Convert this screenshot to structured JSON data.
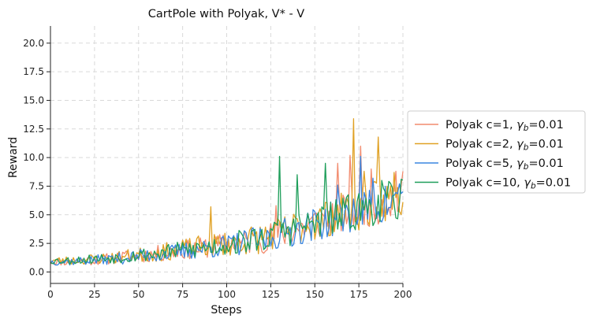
{
  "chart_data": {
    "type": "line",
    "title": "CartPole with Polyak, V* - V",
    "xlabel": "Steps",
    "ylabel": "Reward",
    "xlim": [
      0,
      200
    ],
    "ylim": [
      -1.0,
      21.5
    ],
    "xticks": [
      0,
      25,
      50,
      75,
      100,
      125,
      150,
      175,
      200
    ],
    "yticks": [
      0.0,
      2.5,
      5.0,
      7.5,
      10.0,
      12.5,
      15.0,
      17.5,
      20.0
    ],
    "xtick_labels": [
      "0",
      "25",
      "50",
      "75",
      "100",
      "125",
      "150",
      "175",
      "200"
    ],
    "ytick_labels": [
      "0.0",
      "2.5",
      "5.0",
      "7.5",
      "10.0",
      "12.5",
      "15.0",
      "17.5",
      "20.0"
    ],
    "grid": true,
    "legend_placement": "right-outside",
    "series": [
      {
        "name": "Polyak c=1, γb=0.01",
        "label_main": "Polyak c=1, ",
        "label_tail": "=0.01",
        "color": "#F28B6E",
        "x": [
          0,
          10,
          20,
          30,
          40,
          50,
          60,
          70,
          80,
          90,
          100,
          110,
          120,
          125,
          130,
          135,
          140,
          145,
          150,
          155,
          160,
          165,
          170,
          175,
          180,
          185,
          190,
          195,
          200
        ],
        "y": [
          0.9,
          0.9,
          1.0,
          1.1,
          1.3,
          1.4,
          1.6,
          1.8,
          2.0,
          2.2,
          2.4,
          2.6,
          2.9,
          3.1,
          3.3,
          3.6,
          3.8,
          4.0,
          4.3,
          4.5,
          4.8,
          5.0,
          5.3,
          5.5,
          5.8,
          6.0,
          6.2,
          6.5,
          6.8
        ],
        "noise": 1.2,
        "seed": 11,
        "peaks": [
          [
            128,
            5.8
          ],
          [
            163,
            9.5
          ],
          [
            170,
            10.2
          ],
          [
            176,
            11.0
          ],
          [
            182,
            9.0
          ],
          [
            196,
            8.8
          ]
        ]
      },
      {
        "name": "Polyak c=2, γb=0.01",
        "label_main": "Polyak c=2, ",
        "label_tail": "=0.01",
        "color": "#E0A124",
        "x": [
          0,
          10,
          20,
          30,
          40,
          50,
          60,
          70,
          80,
          90,
          100,
          110,
          120,
          125,
          130,
          135,
          140,
          145,
          150,
          155,
          160,
          165,
          170,
          175,
          180,
          185,
          190,
          195,
          200
        ],
        "y": [
          1.0,
          1.0,
          1.1,
          1.2,
          1.3,
          1.5,
          1.6,
          1.9,
          2.1,
          2.3,
          2.5,
          2.7,
          3.0,
          3.2,
          3.4,
          3.7,
          3.9,
          4.1,
          4.4,
          4.6,
          4.9,
          5.1,
          5.3,
          5.5,
          5.8,
          6.0,
          6.2,
          6.4,
          6.6
        ],
        "noise": 1.25,
        "seed": 23,
        "peaks": [
          [
            91,
            5.7
          ],
          [
            172,
            13.4
          ],
          [
            178,
            8.8
          ],
          [
            186,
            11.8
          ],
          [
            195,
            8.7
          ]
        ]
      },
      {
        "name": "Polyak c=5, γb=0.01",
        "label_main": "Polyak c=5, ",
        "label_tail": "=0.01",
        "color": "#3A86E0",
        "x": [
          0,
          10,
          20,
          30,
          40,
          50,
          60,
          70,
          80,
          90,
          100,
          110,
          120,
          125,
          130,
          135,
          140,
          145,
          150,
          155,
          160,
          165,
          170,
          175,
          180,
          185,
          190,
          195,
          200
        ],
        "y": [
          0.9,
          0.9,
          1.0,
          1.1,
          1.2,
          1.4,
          1.5,
          1.7,
          1.9,
          2.1,
          2.3,
          2.6,
          2.8,
          3.0,
          3.3,
          3.5,
          3.7,
          3.9,
          4.2,
          4.4,
          4.6,
          4.8,
          5.1,
          5.3,
          5.5,
          5.7,
          5.9,
          6.1,
          6.3
        ],
        "noise": 1.15,
        "seed": 37,
        "peaks": [
          [
            163,
            7.6
          ],
          [
            176,
            10.1
          ],
          [
            183,
            8.2
          ],
          [
            198,
            7.7
          ]
        ]
      },
      {
        "name": "Polyak c=10, γb=0.01",
        "label_main": "Polyak c=10, ",
        "label_tail": "=0.01",
        "color": "#1E9E5A",
        "x": [
          0,
          10,
          20,
          30,
          40,
          50,
          60,
          70,
          80,
          90,
          100,
          110,
          120,
          125,
          130,
          135,
          140,
          145,
          150,
          155,
          160,
          165,
          170,
          175,
          180,
          185,
          190,
          195,
          200
        ],
        "y": [
          1.0,
          1.0,
          1.1,
          1.2,
          1.3,
          1.5,
          1.6,
          1.8,
          2.0,
          2.2,
          2.4,
          2.7,
          2.9,
          3.1,
          3.4,
          3.6,
          3.8,
          4.0,
          4.3,
          4.5,
          4.7,
          4.9,
          5.2,
          5.4,
          5.6,
          5.8,
          6.0,
          6.2,
          6.5
        ],
        "noise": 1.15,
        "seed": 53,
        "peaks": [
          [
            130,
            10.1
          ],
          [
            140,
            8.5
          ],
          [
            156,
            9.5
          ],
          [
            188,
            8.0
          ],
          [
            199,
            8.1
          ]
        ]
      }
    ]
  }
}
